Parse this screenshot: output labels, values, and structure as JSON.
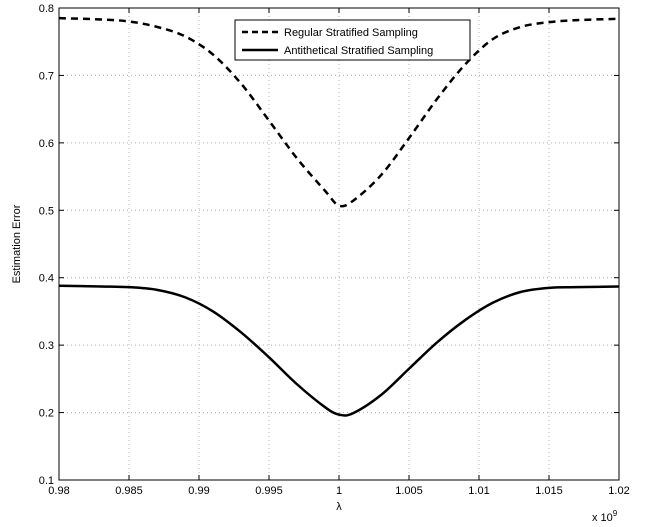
{
  "chart_data": {
    "type": "line",
    "xlabel": "λ",
    "ylabel": "Estimation Error",
    "x_multiplier": "x 10",
    "x_multiplier_exp": "9",
    "xlim": [
      0.98,
      1.02
    ],
    "ylim": [
      0.1,
      0.8
    ],
    "xticks": [
      0.98,
      0.985,
      0.99,
      0.995,
      1,
      1.005,
      1.01,
      1.015,
      1.02
    ],
    "xtick_labels": [
      "0.98",
      "0.985",
      "0.99",
      "0.995",
      "1",
      "1.005",
      "1.01",
      "1.015",
      "1.02"
    ],
    "yticks": [
      0.1,
      0.2,
      0.3,
      0.4,
      0.5,
      0.6,
      0.7,
      0.8
    ],
    "ytick_labels": [
      "0.1",
      "0.2",
      "0.3",
      "0.4",
      "0.5",
      "0.6",
      "0.7",
      "0.8"
    ],
    "grid": true,
    "legend_position": "top-center",
    "x": [
      0.98,
      0.983,
      0.985,
      0.987,
      0.989,
      0.991,
      0.993,
      0.995,
      0.997,
      0.999,
      1.0,
      1.001,
      1.003,
      1.005,
      1.007,
      1.009,
      1.011,
      1.013,
      1.015,
      1.017,
      1.02
    ],
    "series": [
      {
        "name": "Regular Stratified Sampling",
        "style": "dashed",
        "color": "#000000",
        "values": [
          0.785,
          0.783,
          0.78,
          0.772,
          0.758,
          0.731,
          0.688,
          0.633,
          0.577,
          0.529,
          0.507,
          0.514,
          0.552,
          0.607,
          0.665,
          0.716,
          0.754,
          0.772,
          0.779,
          0.782,
          0.784
        ]
      },
      {
        "name": "Antithetical Stratified Sampling",
        "style": "solid",
        "color": "#000000",
        "values": [
          0.388,
          0.387,
          0.386,
          0.382,
          0.371,
          0.35,
          0.319,
          0.282,
          0.242,
          0.208,
          0.197,
          0.199,
          0.226,
          0.265,
          0.304,
          0.337,
          0.363,
          0.379,
          0.385,
          0.386,
          0.387
        ]
      }
    ]
  }
}
